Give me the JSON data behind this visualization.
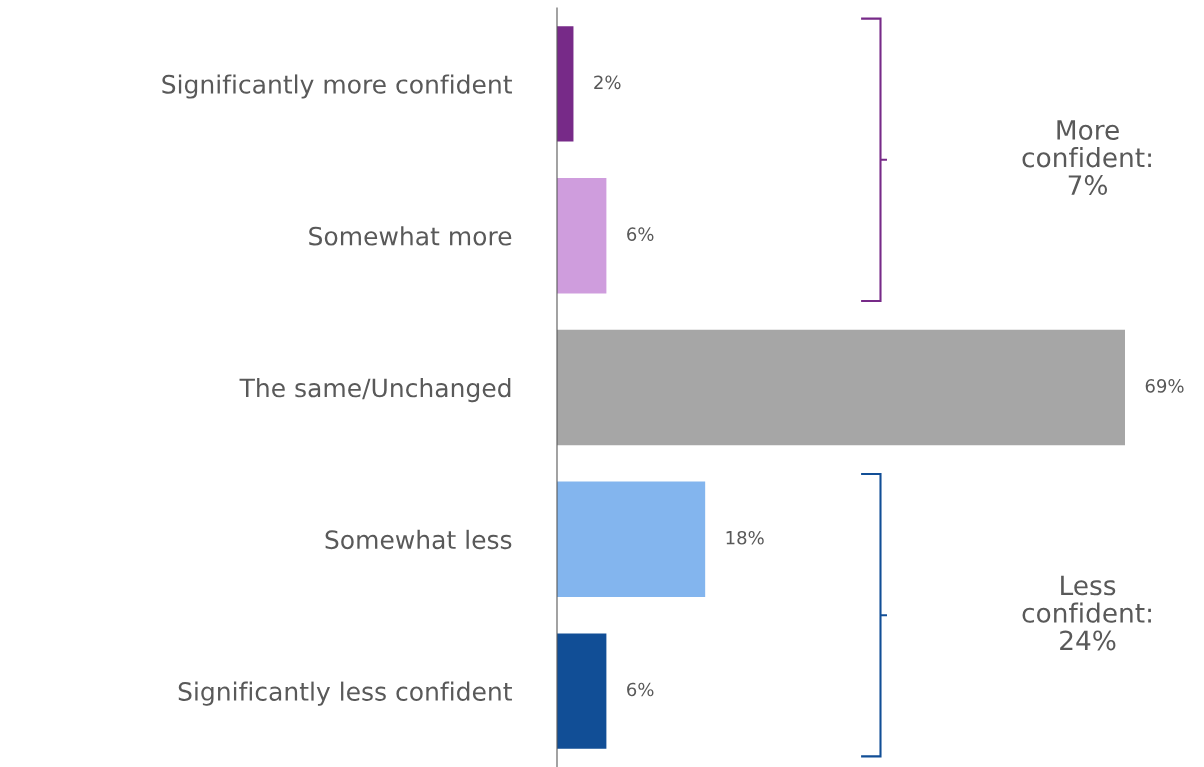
{
  "chart_data": {
    "type": "bar",
    "orientation": "horizontal",
    "categories": [
      "Significantly more confident",
      "Somewhat more",
      "The same/Unchanged",
      "Somewhat less",
      "Significantly less confident"
    ],
    "values": [
      2,
      6,
      69,
      18,
      6
    ],
    "colors": [
      "#772a88",
      "#cf9ddd",
      "#a6a6a6",
      "#83b5ee",
      "#114e96"
    ],
    "value_labels": [
      "2%",
      "6%",
      "69%",
      "18%",
      "6%"
    ],
    "grid": false,
    "legend": false,
    "annotations": [
      "More\nconfident:\n7%",
      "Less\nconfident:\n24%"
    ]
  }
}
